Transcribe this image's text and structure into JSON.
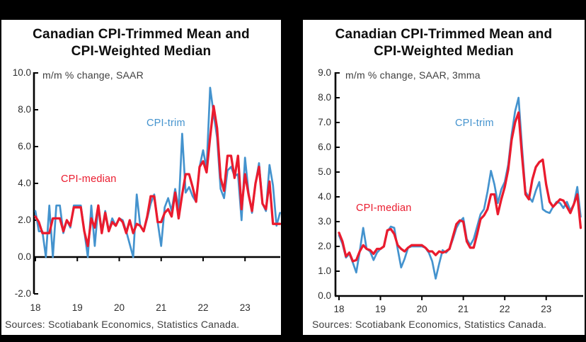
{
  "figure": {
    "background": "#000000",
    "panel_background": "#ffffff"
  },
  "colors": {
    "trim": "#4493ce",
    "median": "#ea1b2e",
    "axis": "#000000",
    "text": "#2e2e2e"
  },
  "chart_data": [
    {
      "type": "line",
      "title": "Canadian CPI-Trimmed Mean and CPI-Weighted Median",
      "subtitle": "m/m % change, SAAR",
      "source_note": "Sources: Scotiabank Economics, Statistics Canada.",
      "frequency": "monthly",
      "x_start": "2018-01",
      "x_end": "2023-11",
      "ylim": [
        -2.0,
        10.0
      ],
      "y_tick_labels": [
        "10.0",
        "8.0",
        "6.0",
        "4.0",
        "2.0",
        "0.0",
        "-2.0"
      ],
      "y_tick_values": [
        10,
        8,
        6,
        4,
        2,
        0,
        -2
      ],
      "x_tick_labels": [
        "18",
        "19",
        "20",
        "21",
        "22",
        "23"
      ],
      "x_tick_months": [
        0,
        12,
        24,
        36,
        48,
        60
      ],
      "grid": false,
      "legend": "inline-labels",
      "series": [
        {
          "name": "CPI-trim",
          "color_key": "trim",
          "values": [
            2.5,
            1.4,
            1.4,
            0.0,
            2.8,
            0.0,
            2.8,
            2.8,
            1.3,
            2.0,
            1.6,
            2.8,
            2.8,
            2.8,
            1.4,
            0.0,
            2.8,
            0.6,
            2.8,
            1.4,
            2.5,
            1.4,
            2.1,
            1.7,
            2.1,
            2.0,
            1.4,
            0.7,
            0.0,
            3.4,
            1.7,
            1.4,
            2.1,
            2.9,
            3.4,
            1.9,
            0.6,
            2.7,
            3.2,
            2.5,
            3.7,
            2.6,
            6.7,
            3.5,
            3.8,
            3.3,
            3.0,
            4.9,
            5.8,
            4.8,
            9.2,
            7.8,
            6.5,
            3.7,
            3.2,
            4.7,
            4.9,
            4.4,
            4.5,
            2.0,
            5.4,
            3.5,
            2.4,
            4.0,
            5.1,
            2.9,
            2.5,
            5.0,
            3.9,
            1.7,
            2.4
          ]
        },
        {
          "name": "CPI-median",
          "color_key": "median",
          "values": [
            2.2,
            1.9,
            1.3,
            1.3,
            1.3,
            2.1,
            2.1,
            2.1,
            1.4,
            2.0,
            1.7,
            2.7,
            2.7,
            2.7,
            1.4,
            0.6,
            2.1,
            1.6,
            2.8,
            1.3,
            2.4,
            1.4,
            1.9,
            1.7,
            2.1,
            1.9,
            1.3,
            2.0,
            1.3,
            1.8,
            1.7,
            1.4,
            2.2,
            3.3,
            3.3,
            1.9,
            1.9,
            2.4,
            2.6,
            2.2,
            3.5,
            2.1,
            3.4,
            4.5,
            4.5,
            3.8,
            3.0,
            4.9,
            5.2,
            4.6,
            6.5,
            8.2,
            7.0,
            4.3,
            3.6,
            5.5,
            5.5,
            4.3,
            5.5,
            2.6,
            4.5,
            3.4,
            2.5,
            4.0,
            4.9,
            2.9,
            2.6,
            4.1,
            1.8,
            1.8,
            1.8
          ]
        }
      ]
    },
    {
      "type": "line",
      "title": "Canadian CPI-Trimmed Mean and CPI-Weighted Median",
      "subtitle": "m/m % change, SAAR, 3mma",
      "source_note": "Sources: Scotiabank Economics, Statistics Canada.",
      "frequency": "monthly",
      "x_start": "2018-01",
      "x_end": "2023-11",
      "ylim": [
        0.0,
        9.0
      ],
      "y_tick_labels": [
        "9.0",
        "8.0",
        "7.0",
        "6.0",
        "5.0",
        "4.0",
        "3.0",
        "2.0",
        "1.0",
        "0.0"
      ],
      "y_tick_values": [
        9,
        8,
        7,
        6,
        5,
        4,
        3,
        2,
        1,
        0
      ],
      "x_tick_labels": [
        "18",
        "19",
        "20",
        "21",
        "22",
        "23"
      ],
      "x_tick_months": [
        0,
        12,
        24,
        36,
        48,
        60
      ],
      "grid": false,
      "legend": "inline-labels",
      "series": [
        {
          "name": "CPI-trim",
          "color_key": "trim",
          "values": [
            2.45,
            2.1,
            1.55,
            1.7,
            1.35,
            0.95,
            1.8,
            2.75,
            1.9,
            1.8,
            1.45,
            1.75,
            1.9,
            2.0,
            2.6,
            2.8,
            2.75,
            1.9,
            1.15,
            1.5,
            1.95,
            2.0,
            2.0,
            2.0,
            2.0,
            1.95,
            1.75,
            1.4,
            0.7,
            1.3,
            1.85,
            1.75,
            1.9,
            2.3,
            2.75,
            3.0,
            3.15,
            2.3,
            2.05,
            2.3,
            2.8,
            3.3,
            3.5,
            4.2,
            5.05,
            4.5,
            3.75,
            4.3,
            4.6,
            5.3,
            6.5,
            7.45,
            8.0,
            6.0,
            4.2,
            4.0,
            3.8,
            4.25,
            4.6,
            3.5,
            3.4,
            3.35,
            3.6,
            3.8,
            3.75,
            3.55,
            3.8,
            3.45,
            3.7,
            4.4,
            3.2
          ]
        },
        {
          "name": "CPI-median",
          "color_key": "median",
          "values": [
            2.55,
            2.2,
            1.6,
            1.75,
            1.4,
            1.45,
            1.8,
            2.05,
            1.9,
            1.85,
            1.7,
            1.9,
            1.9,
            2.0,
            2.65,
            2.7,
            2.5,
            2.05,
            1.9,
            1.8,
            1.95,
            2.05,
            2.05,
            2.05,
            2.05,
            1.95,
            1.8,
            1.8,
            1.65,
            1.8,
            1.75,
            1.8,
            1.9,
            2.4,
            2.9,
            3.05,
            3.0,
            2.2,
            1.95,
            1.95,
            2.5,
            3.1,
            3.25,
            3.5,
            4.1,
            4.1,
            3.3,
            3.9,
            4.4,
            5.1,
            6.3,
            7.0,
            7.4,
            5.65,
            4.1,
            3.9,
            4.7,
            5.2,
            5.4,
            5.5,
            4.5,
            3.8,
            3.6,
            3.75,
            3.9,
            3.85,
            3.6,
            3.35,
            3.7,
            4.1,
            2.75
          ]
        }
      ]
    }
  ]
}
